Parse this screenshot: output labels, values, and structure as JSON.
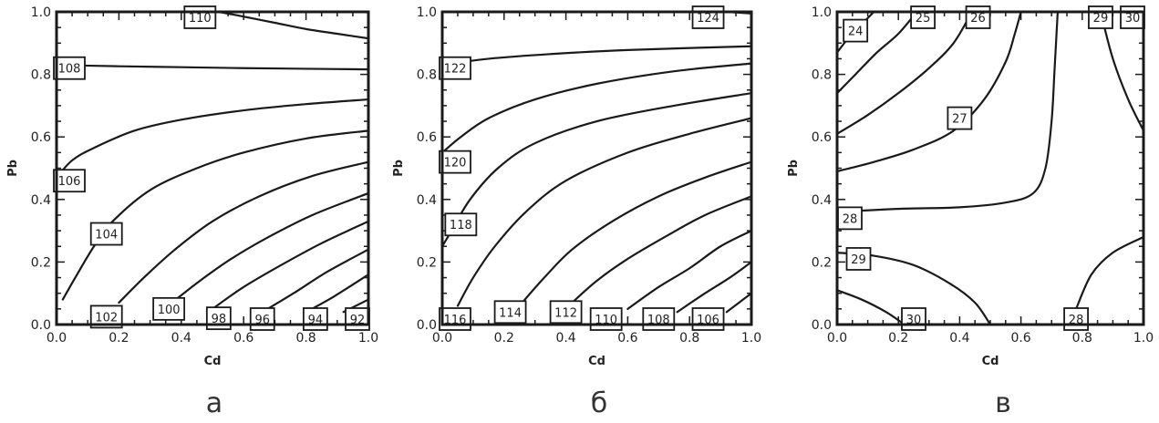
{
  "chart_data": [
    {
      "type": "contour",
      "panel_letter": "а",
      "xlabel": "Cd",
      "ylabel": "Pb",
      "xlim": [
        0,
        1
      ],
      "ylim": [
        0,
        1
      ],
      "xticks": [
        "0.0",
        "0.2",
        "0.4",
        "0.6",
        "0.8",
        "1.0"
      ],
      "yticks": [
        "0.0",
        "0.2",
        "0.4",
        "0.6",
        "0.8",
        "1.0"
      ],
      "contours": [
        {
          "level": "110",
          "points": [
            [
              0.52,
              1.0
            ],
            [
              0.6,
              0.985
            ],
            [
              0.7,
              0.965
            ],
            [
              0.8,
              0.945
            ],
            [
              0.9,
              0.93
            ],
            [
              1.0,
              0.915
            ]
          ],
          "label_at": [
            0.46,
            0.99
          ]
        },
        {
          "level": "108",
          "points": [
            [
              0.0,
              0.83
            ],
            [
              0.2,
              0.826
            ],
            [
              0.4,
              0.823
            ],
            [
              0.6,
              0.82
            ],
            [
              0.8,
              0.818
            ],
            [
              1.0,
              0.816
            ]
          ],
          "label_at": [
            0.04,
            0.82
          ]
        },
        {
          "level": "106",
          "points": [
            [
              0.0,
              0.47
            ],
            [
              0.05,
              0.525
            ],
            [
              0.12,
              0.565
            ],
            [
              0.25,
              0.62
            ],
            [
              0.4,
              0.655
            ],
            [
              0.6,
              0.685
            ],
            [
              0.8,
              0.705
            ],
            [
              1.0,
              0.72
            ]
          ],
          "label_at": [
            0.02,
            0.46
          ]
        },
        {
          "level": "104",
          "points": [
            [
              0.02,
              0.08
            ],
            [
              0.06,
              0.15
            ],
            [
              0.12,
              0.25
            ],
            [
              0.18,
              0.33
            ],
            [
              0.3,
              0.43
            ],
            [
              0.45,
              0.5
            ],
            [
              0.6,
              0.55
            ],
            [
              0.8,
              0.595
            ],
            [
              1.0,
              0.62
            ]
          ],
          "label_at": [
            0.16,
            0.29
          ]
        },
        {
          "level": "102",
          "points": [
            [
              0.2,
              0.07
            ],
            [
              0.28,
              0.15
            ],
            [
              0.38,
              0.24
            ],
            [
              0.5,
              0.33
            ],
            [
              0.65,
              0.41
            ],
            [
              0.82,
              0.475
            ],
            [
              1.0,
              0.52
            ]
          ],
          "label_at": [
            0.16,
            0.025
          ]
        },
        {
          "level": "100",
          "points": [
            [
              0.37,
              0.07
            ],
            [
              0.46,
              0.14
            ],
            [
              0.56,
              0.21
            ],
            [
              0.68,
              0.28
            ],
            [
              0.82,
              0.35
            ],
            [
              1.0,
              0.42
            ]
          ],
          "label_at": [
            0.36,
            0.05
          ]
        },
        {
          "level": "98",
          "points": [
            [
              0.5,
              0.05
            ],
            [
              0.6,
              0.12
            ],
            [
              0.72,
              0.19
            ],
            [
              0.85,
              0.26
            ],
            [
              1.0,
              0.33
            ]
          ],
          "label_at": [
            0.52,
            0.02
          ]
        },
        {
          "level": "96",
          "points": [
            [
              0.66,
              0.04
            ],
            [
              0.76,
              0.1
            ],
            [
              0.87,
              0.17
            ],
            [
              1.0,
              0.24
            ]
          ],
          "label_at": [
            0.66,
            0.01
          ]
        },
        {
          "level": "94",
          "points": [
            [
              0.8,
              0.04
            ],
            [
              0.89,
              0.09
            ],
            [
              1.0,
              0.16
            ]
          ],
          "label_at": [
            0.83,
            0.01
          ]
        },
        {
          "level": "92",
          "points": [
            [
              0.92,
              0.04
            ],
            [
              1.0,
              0.08
            ]
          ],
          "label_at": [
            0.98,
            0.01
          ]
        }
      ]
    },
    {
      "type": "contour",
      "panel_letter": "б",
      "xlabel": "Cd",
      "ylabel": "Pb",
      "xlim": [
        0,
        1
      ],
      "ylim": [
        0,
        1
      ],
      "xticks": [
        "0.0",
        "0.2",
        "0.4",
        "0.6",
        "0.8",
        "1.0"
      ],
      "yticks": [
        "0.0",
        "0.2",
        "0.4",
        "0.6",
        "0.8",
        "1.0"
      ],
      "contours": [
        {
          "level": "124",
          "points": [
            [
              0.92,
              1.0
            ],
            [
              1.0,
              0.995
            ]
          ],
          "label_at": [
            0.86,
            0.995
          ]
        },
        {
          "level": "122",
          "points": [
            [
              0.0,
              0.83
            ],
            [
              0.15,
              0.85
            ],
            [
              0.35,
              0.865
            ],
            [
              0.6,
              0.878
            ],
            [
              1.0,
              0.89
            ]
          ],
          "label_at": [
            0.02,
            0.82
          ]
        },
        {
          "level": "120",
          "points": [
            [
              0.0,
              0.55
            ],
            [
              0.06,
              0.6
            ],
            [
              0.15,
              0.66
            ],
            [
              0.3,
              0.72
            ],
            [
              0.5,
              0.77
            ],
            [
              0.75,
              0.81
            ],
            [
              1.0,
              0.835
            ]
          ],
          "label_at": [
            0.02,
            0.52
          ]
        },
        {
          "level": "118",
          "points": [
            [
              0.0,
              0.25
            ],
            [
              0.03,
              0.3
            ],
            [
              0.09,
              0.4
            ],
            [
              0.18,
              0.5
            ],
            [
              0.3,
              0.58
            ],
            [
              0.5,
              0.65
            ],
            [
              0.75,
              0.7
            ],
            [
              1.0,
              0.74
            ]
          ],
          "label_at": [
            0.06,
            0.32
          ]
        },
        {
          "level": "116",
          "points": [
            [
              0.05,
              0.06
            ],
            [
              0.1,
              0.15
            ],
            [
              0.17,
              0.25
            ],
            [
              0.27,
              0.36
            ],
            [
              0.4,
              0.46
            ],
            [
              0.6,
              0.55
            ],
            [
              0.8,
              0.61
            ],
            [
              1.0,
              0.66
            ]
          ],
          "label_at": [
            0.02,
            0.01
          ]
        },
        {
          "level": "114",
          "points": [
            [
              0.25,
              0.06
            ],
            [
              0.33,
              0.15
            ],
            [
              0.42,
              0.24
            ],
            [
              0.55,
              0.33
            ],
            [
              0.7,
              0.41
            ],
            [
              0.85,
              0.47
            ],
            [
              1.0,
              0.52
            ]
          ],
          "label_at": [
            0.22,
            0.04
          ]
        },
        {
          "level": "112",
          "points": [
            [
              0.42,
              0.07
            ],
            [
              0.5,
              0.14
            ],
            [
              0.6,
              0.21
            ],
            [
              0.72,
              0.28
            ],
            [
              0.85,
              0.35
            ],
            [
              1.0,
              0.41
            ]
          ],
          "label_at": [
            0.4,
            0.04
          ]
        },
        {
          "level": "110",
          "points": [
            [
              0.6,
              0.05
            ],
            [
              0.7,
              0.12
            ],
            [
              0.8,
              0.18
            ],
            [
              0.9,
              0.25
            ],
            [
              1.0,
              0.3
            ]
          ],
          "label_at": [
            0.53,
            0.01
          ]
        },
        {
          "level": "108",
          "points": [
            [
              0.76,
              0.04
            ],
            [
              0.85,
              0.1
            ],
            [
              0.93,
              0.15
            ],
            [
              1.0,
              0.2
            ]
          ],
          "label_at": [
            0.7,
            0.01
          ]
        },
        {
          "level": "106",
          "points": [
            [
              0.92,
              0.04
            ],
            [
              0.96,
              0.07
            ],
            [
              1.0,
              0.1
            ]
          ],
          "label_at": [
            0.86,
            0.01
          ]
        }
      ]
    },
    {
      "type": "contour",
      "panel_letter": "в",
      "xlabel": "Cd",
      "ylabel": "Pb",
      "xlim": [
        0,
        1
      ],
      "ylim": [
        0,
        1
      ],
      "xticks": [
        "0.0",
        "0.2",
        "0.4",
        "0.6",
        "0.8",
        "1.0"
      ],
      "yticks": [
        "0.0",
        "0.2",
        "0.4",
        "0.6",
        "0.8",
        "1.0"
      ],
      "contours": [
        {
          "level": "24",
          "points": [
            [
              0.0,
              0.87
            ],
            [
              0.04,
              0.92
            ],
            [
              0.08,
              0.96
            ],
            [
              0.12,
              1.0
            ]
          ],
          "label_at": [
            0.06,
            0.94
          ]
        },
        {
          "level": "25",
          "points": [
            [
              0.0,
              0.74
            ],
            [
              0.06,
              0.8
            ],
            [
              0.13,
              0.87
            ],
            [
              0.2,
              0.93
            ],
            [
              0.26,
              1.0
            ]
          ],
          "label_at": [
            0.28,
            0.99
          ]
        },
        {
          "level": "26",
          "points": [
            [
              0.0,
              0.61
            ],
            [
              0.1,
              0.67
            ],
            [
              0.2,
              0.74
            ],
            [
              0.3,
              0.82
            ],
            [
              0.38,
              0.9
            ],
            [
              0.44,
              1.0
            ]
          ],
          "label_at": [
            0.46,
            1.0
          ]
        },
        {
          "level": "27",
          "points": [
            [
              0.0,
              0.49
            ],
            [
              0.12,
              0.52
            ],
            [
              0.25,
              0.56
            ],
            [
              0.38,
              0.62
            ],
            [
              0.48,
              0.72
            ],
            [
              0.55,
              0.84
            ],
            [
              0.58,
              0.93
            ],
            [
              0.6,
              1.0
            ]
          ],
          "label_at": [
            0.4,
            0.66
          ]
        },
        {
          "level": "28",
          "points": [
            [
              0.0,
              0.36
            ],
            [
              0.2,
              0.37
            ],
            [
              0.4,
              0.375
            ],
            [
              0.55,
              0.39
            ],
            [
              0.64,
              0.42
            ],
            [
              0.68,
              0.5
            ],
            [
              0.7,
              0.65
            ],
            [
              0.71,
              0.82
            ],
            [
              0.72,
              1.0
            ]
          ],
          "label_at": [
            0.03,
            0.34
          ]
        },
        {
          "level": "29",
          "points": [
            [
              0.0,
              0.23
            ],
            [
              0.12,
              0.22
            ],
            [
              0.25,
              0.19
            ],
            [
              0.37,
              0.13
            ],
            [
              0.45,
              0.07
            ],
            [
              0.5,
              0.0
            ]
          ],
          "label_at": [
            0.07,
            0.21
          ]
        },
        {
          "level": "30",
          "points": [
            [
              0.0,
              0.11
            ],
            [
              0.08,
              0.08
            ],
            [
              0.16,
              0.04
            ],
            [
              0.22,
              0.0
            ]
          ],
          "label_at": [
            0.25,
            0.0
          ]
        },
        {
          "level": "29",
          "points": [
            [
              0.86,
              1.0
            ],
            [
              0.9,
              0.85
            ],
            [
              0.95,
              0.72
            ],
            [
              1.0,
              0.62
            ]
          ],
          "label_at": [
            0.86,
            1.0
          ]
        },
        {
          "level": "30",
          "points": [
            [
              0.99,
              1.0
            ],
            [
              1.0,
              0.99
            ]
          ],
          "label_at": [
            0.99,
            0.99
          ]
        },
        {
          "level": "28",
          "points": [
            [
              0.78,
              0.05
            ],
            [
              0.83,
              0.16
            ],
            [
              0.9,
              0.23
            ],
            [
              1.0,
              0.28
            ]
          ],
          "label_at": [
            0.78,
            0.01
          ]
        }
      ]
    }
  ]
}
